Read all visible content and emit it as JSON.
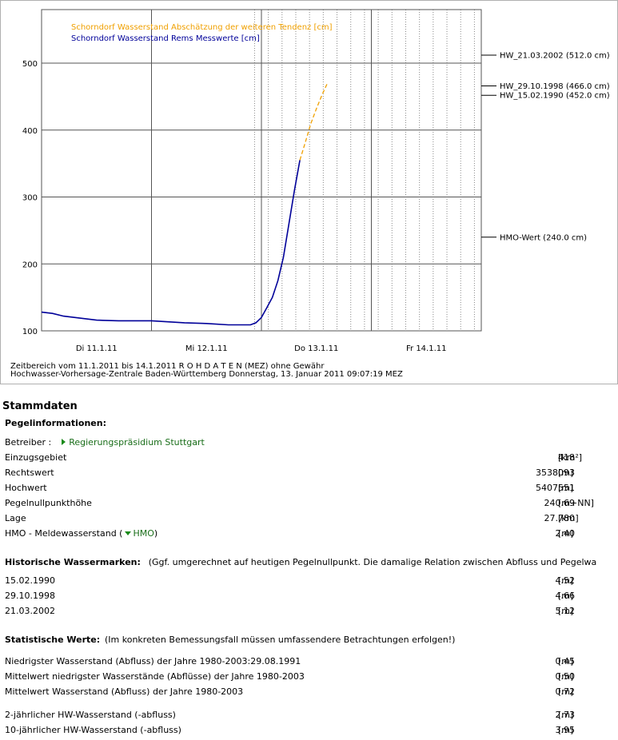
{
  "chart_data": {
    "type": "line",
    "legend": [
      "Schorndorf Wasserstand Abschätzung der weiteren Tendenz [cm]",
      "Schorndorf Wasserstand Rems Messwerte [cm]"
    ],
    "series": [
      {
        "name": "Schorndorf Wasserstand Rems Messwerte [cm]",
        "color": "#000099",
        "x": [
          11.0,
          11.1,
          11.2,
          11.35,
          11.5,
          11.7,
          12.0,
          12.3,
          12.5,
          12.7,
          12.9,
          12.95,
          13.0,
          13.05,
          13.1,
          13.15,
          13.2,
          13.25,
          13.3,
          13.35
        ],
        "y": [
          128,
          126,
          122,
          119,
          116,
          115,
          115,
          112,
          111,
          109,
          109,
          112,
          120,
          135,
          150,
          175,
          210,
          260,
          310,
          355
        ]
      },
      {
        "name": "Schorndorf Wasserstand Abschätzung der weiteren Tendenz [cm]",
        "color": "#f0a000",
        "x": [
          13.35,
          13.4,
          13.45,
          13.5,
          13.55,
          13.6
        ],
        "y": [
          355,
          382,
          410,
          432,
          452,
          470
        ]
      }
    ],
    "xlim": [
      11.0,
      15.0
    ],
    "ylim": [
      100,
      580
    ],
    "yticks": [
      100,
      200,
      300,
      400,
      500
    ],
    "xticks": [
      {
        "label": "Di 11.1.11",
        "x": 11.5
      },
      {
        "label": "Mi 12.1.11",
        "x": 12.5
      },
      {
        "label": "Do 13.1.11",
        "x": 13.5
      },
      {
        "label": "Fr 14.1.11",
        "x": 14.5
      }
    ],
    "reference_lines": [
      {
        "label": "HW_21.03.2002 (512.0 cm)",
        "y": 512.0
      },
      {
        "label": "HW_29.10.1998 (466.0 cm)",
        "y": 466.0
      },
      {
        "label": "HW_15.02.1990 (452.0 cm)",
        "y": 452.0
      },
      {
        "label": "HMO-Wert (240.0 cm)",
        "y": 240.0
      }
    ],
    "footer_1": "Zeitbereich vom 11.1.2011 bis 14.1.2011     R O H D A T E N (MEZ) ohne Gewähr",
    "footer_2": "Hochwasser-Vorhersage-Zentrale Baden-Württemberg Donnerstag, 13. Januar 2011 09:07:19 MEZ"
  },
  "stammdaten": {
    "title": "Stammdaten",
    "pegel_heading": "Pegelinformationen:",
    "betreiber_label": "Betreiber :",
    "betreiber_link": "Regierungspräsidium Stuttgart",
    "rows": [
      {
        "label": "Einzugsgebiet",
        "value": "418",
        "unit": "[km²]"
      },
      {
        "label": "Rechtswert",
        "value": "3538093",
        "unit": "[m]"
      },
      {
        "label": "Hochwert",
        "value": "5407551",
        "unit": "[m]"
      },
      {
        "label": "Pegelnullpunkthöhe",
        "value": "240.69",
        "unit": "[m+NN]"
      },
      {
        "label": "Lage",
        "value": "27.780",
        "unit": "[km]"
      }
    ],
    "hmo_label_pre": "HMO - Meldewasserstand (",
    "hmo_link": "HMO",
    "hmo_label_post": ")",
    "hmo_value": "2.40",
    "hmo_unit": "[m]",
    "hist_heading": "Historische Wassermarken:",
    "hist_note": "(Ggf. umgerechnet auf heutigen Pegelnullpunkt. Die damalige Relation zwischen Abfluss und Pegelwa",
    "hist_rows": [
      {
        "label": "15.02.1990",
        "value": "4.52",
        "unit": "[m]"
      },
      {
        "label": "29.10.1998",
        "value": "4.66",
        "unit": "[m]"
      },
      {
        "label": "21.03.2002",
        "value": "5.12",
        "unit": "[m]"
      }
    ],
    "stat_heading": "Statistische Werte:",
    "stat_note": "(Im konkreten Bemessungsfall müssen umfassendere Betrachtungen erfolgen!)",
    "stat_rows": [
      {
        "label": "Niedrigster Wasserstand (Abfluss) der Jahre 1980-2003:29.08.1991",
        "value": "0.45",
        "unit": "[m]"
      },
      {
        "label": "Mittelwert niedrigster Wasserstände (Abflüsse) der Jahre 1980-2003",
        "value": "0.50",
        "unit": "[m]"
      },
      {
        "label": "Mittelwert Wasserstand (Abfluss) der Jahre 1980-2003",
        "value": "0.72",
        "unit": "[m]"
      }
    ],
    "hw_rows": [
      {
        "label": "2-jährlicher HW-Wasserstand (-abfluss)",
        "value": "2.73",
        "unit": "[m]"
      },
      {
        "label": "10-jährlicher HW-Wasserstand (-abfluss)",
        "value": "3.95",
        "unit": "[m]"
      }
    ]
  }
}
